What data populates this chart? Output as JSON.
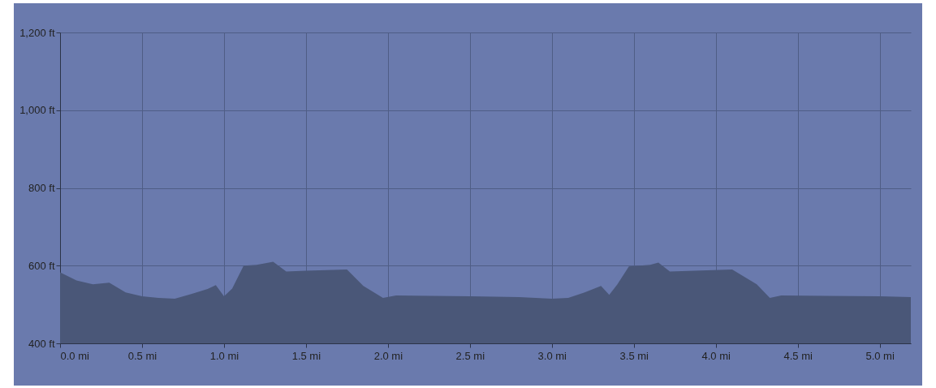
{
  "chart_data": {
    "type": "area",
    "color": "#4a5778",
    "x": [
      0,
      0.1,
      0.2,
      0.3,
      0.4,
      0.5,
      0.6,
      0.7,
      0.8,
      0.9,
      0.95,
      1.0,
      1.05,
      1.12,
      1.2,
      1.3,
      1.38,
      1.5,
      1.75,
      1.85,
      1.97,
      2.05,
      2.5,
      2.8,
      3.0,
      3.1,
      3.2,
      3.3,
      3.35,
      3.4,
      3.47,
      3.6,
      3.65,
      3.72,
      4.1,
      4.25,
      4.33,
      4.4,
      5.0,
      5.19
    ],
    "values": [
      583,
      562,
      552,
      556,
      531,
      521,
      517,
      515,
      527,
      540,
      550,
      521,
      541,
      600,
      602,
      610,
      585,
      587,
      590,
      548,
      517,
      523,
      521,
      519,
      515,
      517,
      531,
      548,
      525,
      552,
      598,
      602,
      608,
      585,
      590,
      552,
      517,
      523,
      521,
      519
    ],
    "xlim": [
      0,
      5.19
    ],
    "ylim": [
      400,
      1200
    ],
    "xticks": [
      {
        "value": 0,
        "label": "0.0 mi"
      },
      {
        "value": 0.5,
        "label": "0.5 mi"
      },
      {
        "value": 1,
        "label": "1.0 mi"
      },
      {
        "value": 1.5,
        "label": "1.5 mi"
      },
      {
        "value": 2,
        "label": "2.0 mi"
      },
      {
        "value": 2.5,
        "label": "2.5 mi"
      },
      {
        "value": 3,
        "label": "3.0 mi"
      },
      {
        "value": 3.5,
        "label": "3.5 mi"
      },
      {
        "value": 4,
        "label": "4.0 mi"
      },
      {
        "value": 4.5,
        "label": "4.5 mi"
      },
      {
        "value": 5,
        "label": "5.0 mi"
      }
    ],
    "yticks": [
      {
        "value": 400,
        "label": "400 ft"
      },
      {
        "value": 600,
        "label": "600 ft"
      },
      {
        "value": 800,
        "label": "800 ft"
      },
      {
        "value": 1000,
        "label": "1,000 ft"
      },
      {
        "value": 1200,
        "label": "1,200 ft"
      }
    ],
    "grid": true
  }
}
